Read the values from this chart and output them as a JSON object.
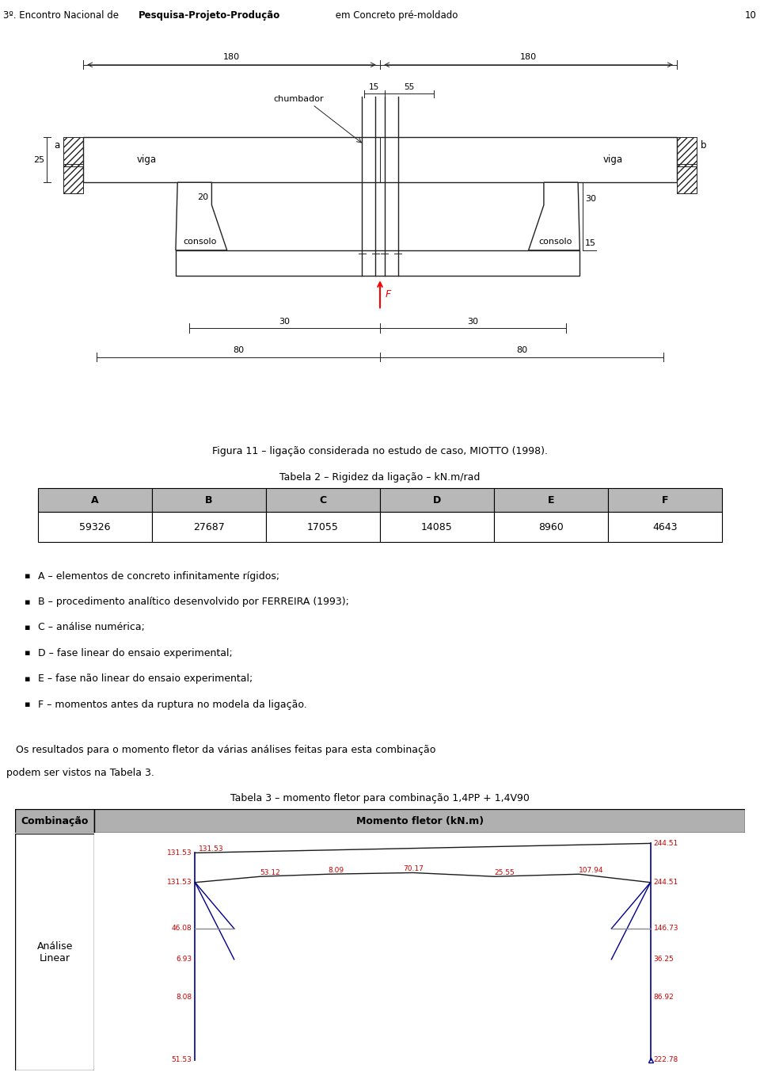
{
  "page_number": "10",
  "fig_caption": "Figura 11 – ligação considerada no estudo de caso, MIOTTO (1998).",
  "table2_title": "Tabela 2 – Rigidez da ligação – kN.m/rad",
  "table2_headers": [
    "A",
    "B",
    "C",
    "D",
    "E",
    "F"
  ],
  "table2_values": [
    "59326",
    "27687",
    "17055",
    "14085",
    "8960",
    "4643"
  ],
  "bullet_items": [
    "A – elementos de concreto infinitamente rígidos;",
    "B – procedimento analítico desenvolvido por FERREIRA (1993);",
    "C – análise numérica;",
    "D – fase linear do ensaio experimental;",
    "E – fase não linear do ensaio experimental;",
    "F – momentos antes da ruptura no modela da ligação."
  ],
  "results_text1": "Os resultados para o momento fletor da várias análises feitas para esta combinação",
  "results_text2": "podem ser vistos na Tabela 3.",
  "table3_title": "Tabela 3 – momento fletor para combinação 1,4PP + 1,4V90",
  "table3_col1": "Combinação",
  "table3_col2": "Momento fletor (kN.m)",
  "table3_row1": "Análise\nLinear",
  "background_color": "#ffffff",
  "chart_bg": "#c8d4e8",
  "blue": "#00008b",
  "black_line": "#1a1a1a",
  "gray_line": "#808080",
  "red_label": "#cc0000",
  "header_bg": "#b0b0b0"
}
